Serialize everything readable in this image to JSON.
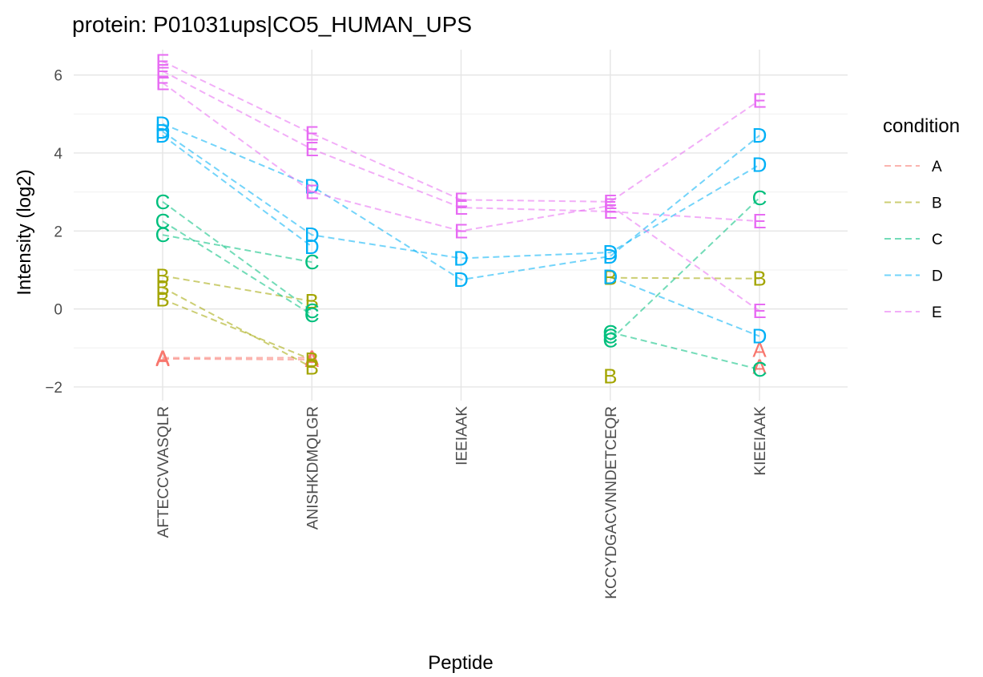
{
  "chart_data": {
    "type": "line",
    "title": "protein: P01031ups|CO5_HUMAN_UPS",
    "xlabel": "Peptide",
    "ylabel": "Intensity (log2)",
    "categories": [
      "AFTECCVVASQLR",
      "ANISHKDMQLGR",
      "IEEIAAK",
      "KCCYDGACVNNDETCEQR",
      "KIEEIAAK"
    ],
    "yticks": [
      -2,
      0,
      2,
      4,
      6
    ],
    "ytick_labels": [
      "−2",
      "0",
      "2",
      "4",
      "6"
    ],
    "ylim": [
      -2.35,
      6.65
    ],
    "grid": true,
    "legend": {
      "title": "condition",
      "position": "right"
    },
    "conditions": [
      {
        "name": "A",
        "color": "#F8766D"
      },
      {
        "name": "B",
        "color": "#A3A500"
      },
      {
        "name": "C",
        "color": "#00BF7D"
      },
      {
        "name": "D",
        "color": "#00B0F6"
      },
      {
        "name": "E",
        "color": "#E76BF3"
      }
    ],
    "series": [
      {
        "condition": "A",
        "values": [
          -1.25,
          -1.25,
          null,
          null,
          -1.05
        ]
      },
      {
        "condition": "A",
        "values": [
          -1.28,
          -1.3,
          null,
          null,
          -1.48
        ]
      },
      {
        "condition": "B",
        "values": [
          0.85,
          0.2,
          null,
          0.8,
          0.78
        ]
      },
      {
        "condition": "B",
        "values": [
          0.55,
          -1.5,
          null,
          -1.72,
          null
        ]
      },
      {
        "condition": "B",
        "values": [
          0.25,
          -1.3,
          null,
          null,
          null
        ]
      },
      {
        "condition": "C",
        "values": [
          2.75,
          -0.05,
          null,
          -0.6,
          -1.55
        ]
      },
      {
        "condition": "C",
        "values": [
          2.25,
          -0.15,
          null,
          -0.8,
          2.85
        ]
      },
      {
        "condition": "C",
        "values": [
          1.9,
          1.2,
          null,
          -0.7,
          null
        ]
      },
      {
        "condition": "D",
        "values": [
          4.75,
          3.15,
          0.75,
          1.35,
          4.45
        ]
      },
      {
        "condition": "D",
        "values": [
          4.55,
          1.9,
          1.3,
          1.45,
          3.7
        ]
      },
      {
        "condition": "D",
        "values": [
          4.45,
          1.6,
          null,
          0.82,
          -0.7
        ]
      },
      {
        "condition": "E",
        "values": [
          6.35,
          4.5,
          2.8,
          2.75,
          5.35
        ]
      },
      {
        "condition": "E",
        "values": [
          6.1,
          4.1,
          2.6,
          2.5,
          2.25
        ]
      },
      {
        "condition": "E",
        "values": [
          5.8,
          3.0,
          2.0,
          2.65,
          -0.05
        ]
      }
    ]
  }
}
